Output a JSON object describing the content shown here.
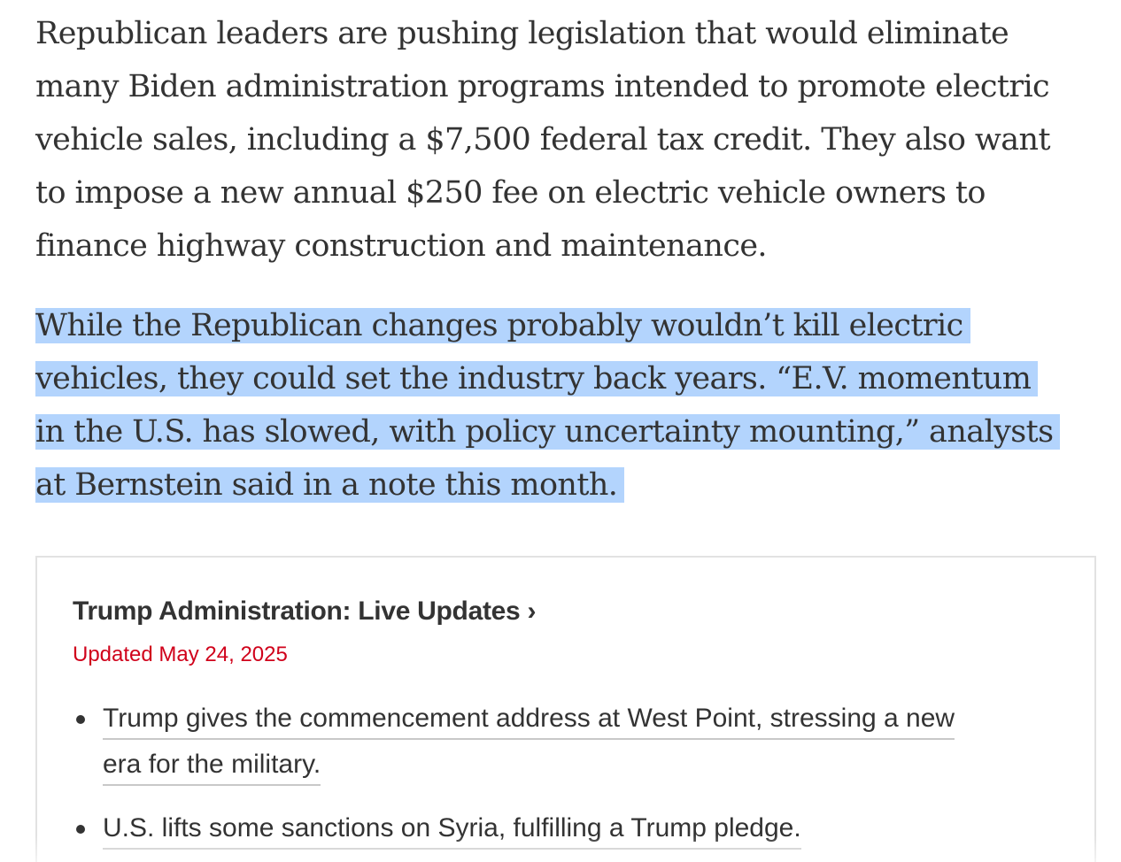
{
  "article": {
    "paragraph1": [
      "Republican leaders are pushing legislation that would eliminate",
      "many Biden administration programs intended to promote electric",
      "vehicle sales, including a $7,500 federal tax credit. They also want",
      "to impose a new annual $250 fee on electric vehicle owners to",
      "finance highway construction and maintenance."
    ],
    "paragraph2": [
      "While the Republican changes probably wouldn’t kill electric",
      "vehicles, they could set the industry back years. “E.V. momentum",
      "in the U.S. has slowed, with policy uncertainty mounting,” analysts",
      "at Bernstein said in a note this month."
    ],
    "selection_color": "#b3d4fd"
  },
  "live_updates": {
    "title": "Trump Administration: Live Updates ›",
    "updated": "Updated May 24, 2025",
    "updated_color": "#d0021b",
    "items": [
      {
        "lines": [
          "Trump gives the commencement address at West Point, stressing a new",
          "era for the military."
        ]
      },
      {
        "lines": [
          "U.S. lifts some sanctions on Syria, fulfilling a Trump pledge."
        ]
      }
    ]
  }
}
